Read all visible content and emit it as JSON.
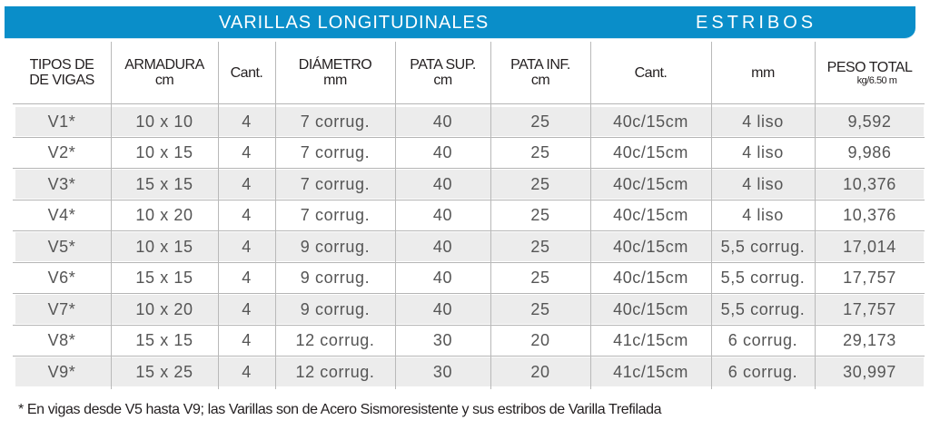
{
  "banner": {
    "left_title": "VARILLAS LONGITUDINALES",
    "right_title": "ESTRIBOS",
    "color": "#0a8ec9"
  },
  "headers": {
    "tipos": {
      "line1": "TIPOS DE",
      "line2": "DE VIGAS"
    },
    "armadura": {
      "line1": "ARMADURA",
      "line2": "cm"
    },
    "cant": {
      "line1": "Cant."
    },
    "diametro": {
      "line1": "DIÁMETRO",
      "line2": "mm"
    },
    "pata_sup": {
      "line1": "PATA SUP.",
      "line2": "cm"
    },
    "pata_inf": {
      "line1": "PATA INF.",
      "line2": "cm"
    },
    "estribos_cant": {
      "line1": "Cant."
    },
    "estribos_mm": {
      "line1": "mm"
    },
    "peso_total": {
      "line1": "PESO TOTAL",
      "line2": "kg/6.50 m"
    }
  },
  "rows": [
    {
      "tipo": "V1*",
      "armadura": "10 x 10",
      "cant": "4",
      "diametro": "7 corrug.",
      "pata_sup": "40",
      "pata_inf": "25",
      "estribos_cant": "40c/15cm",
      "estribos_mm": "4 liso",
      "peso_total": "9,592"
    },
    {
      "tipo": "V2*",
      "armadura": "10 x 15",
      "cant": "4",
      "diametro": "7 corrug.",
      "pata_sup": "40",
      "pata_inf": "25",
      "estribos_cant": "40c/15cm",
      "estribos_mm": "4 liso",
      "peso_total": "9,986"
    },
    {
      "tipo": "V3*",
      "armadura": "15 x 15",
      "cant": "4",
      "diametro": "7 corrug.",
      "pata_sup": "40",
      "pata_inf": "25",
      "estribos_cant": "40c/15cm",
      "estribos_mm": "4 liso",
      "peso_total": "10,376"
    },
    {
      "tipo": "V4*",
      "armadura": "10 x 20",
      "cant": "4",
      "diametro": "7 corrug.",
      "pata_sup": "40",
      "pata_inf": "25",
      "estribos_cant": "40c/15cm",
      "estribos_mm": "4 liso",
      "peso_total": "10,376"
    },
    {
      "tipo": "V5*",
      "armadura": "10 x 15",
      "cant": "4",
      "diametro": "9 corrug.",
      "pata_sup": "40",
      "pata_inf": "25",
      "estribos_cant": "40c/15cm",
      "estribos_mm": "5,5 corrug.",
      "peso_total": "17,014"
    },
    {
      "tipo": "V6*",
      "armadura": "15 x 15",
      "cant": "4",
      "diametro": "9 corrug.",
      "pata_sup": "40",
      "pata_inf": "25",
      "estribos_cant": "40c/15cm",
      "estribos_mm": "5,5 corrug.",
      "peso_total": "17,757"
    },
    {
      "tipo": "V7*",
      "armadura": "10 x 20",
      "cant": "4",
      "diametro": "9 corrug.",
      "pata_sup": "40",
      "pata_inf": "25",
      "estribos_cant": "40c/15cm",
      "estribos_mm": "5,5 corrug.",
      "peso_total": "17,757"
    },
    {
      "tipo": "V8*",
      "armadura": "15 x 15",
      "cant": "4",
      "diametro": "12 corrug.",
      "pata_sup": "30",
      "pata_inf": "20",
      "estribos_cant": "41c/15cm",
      "estribos_mm": "6 corrug.",
      "peso_total": "29,173"
    },
    {
      "tipo": "V9*",
      "armadura": "15 x 25",
      "cant": "4",
      "diametro": "12 corrug.",
      "pata_sup": "30",
      "pata_inf": "20",
      "estribos_cant": "41c/15cm",
      "estribos_mm": "6 corrug.",
      "peso_total": "30,997"
    }
  ],
  "footnote": "* En vigas desde V5 hasta V9; las Varillas son de Acero Sismoresistente y sus estribos de Varilla Trefilada"
}
